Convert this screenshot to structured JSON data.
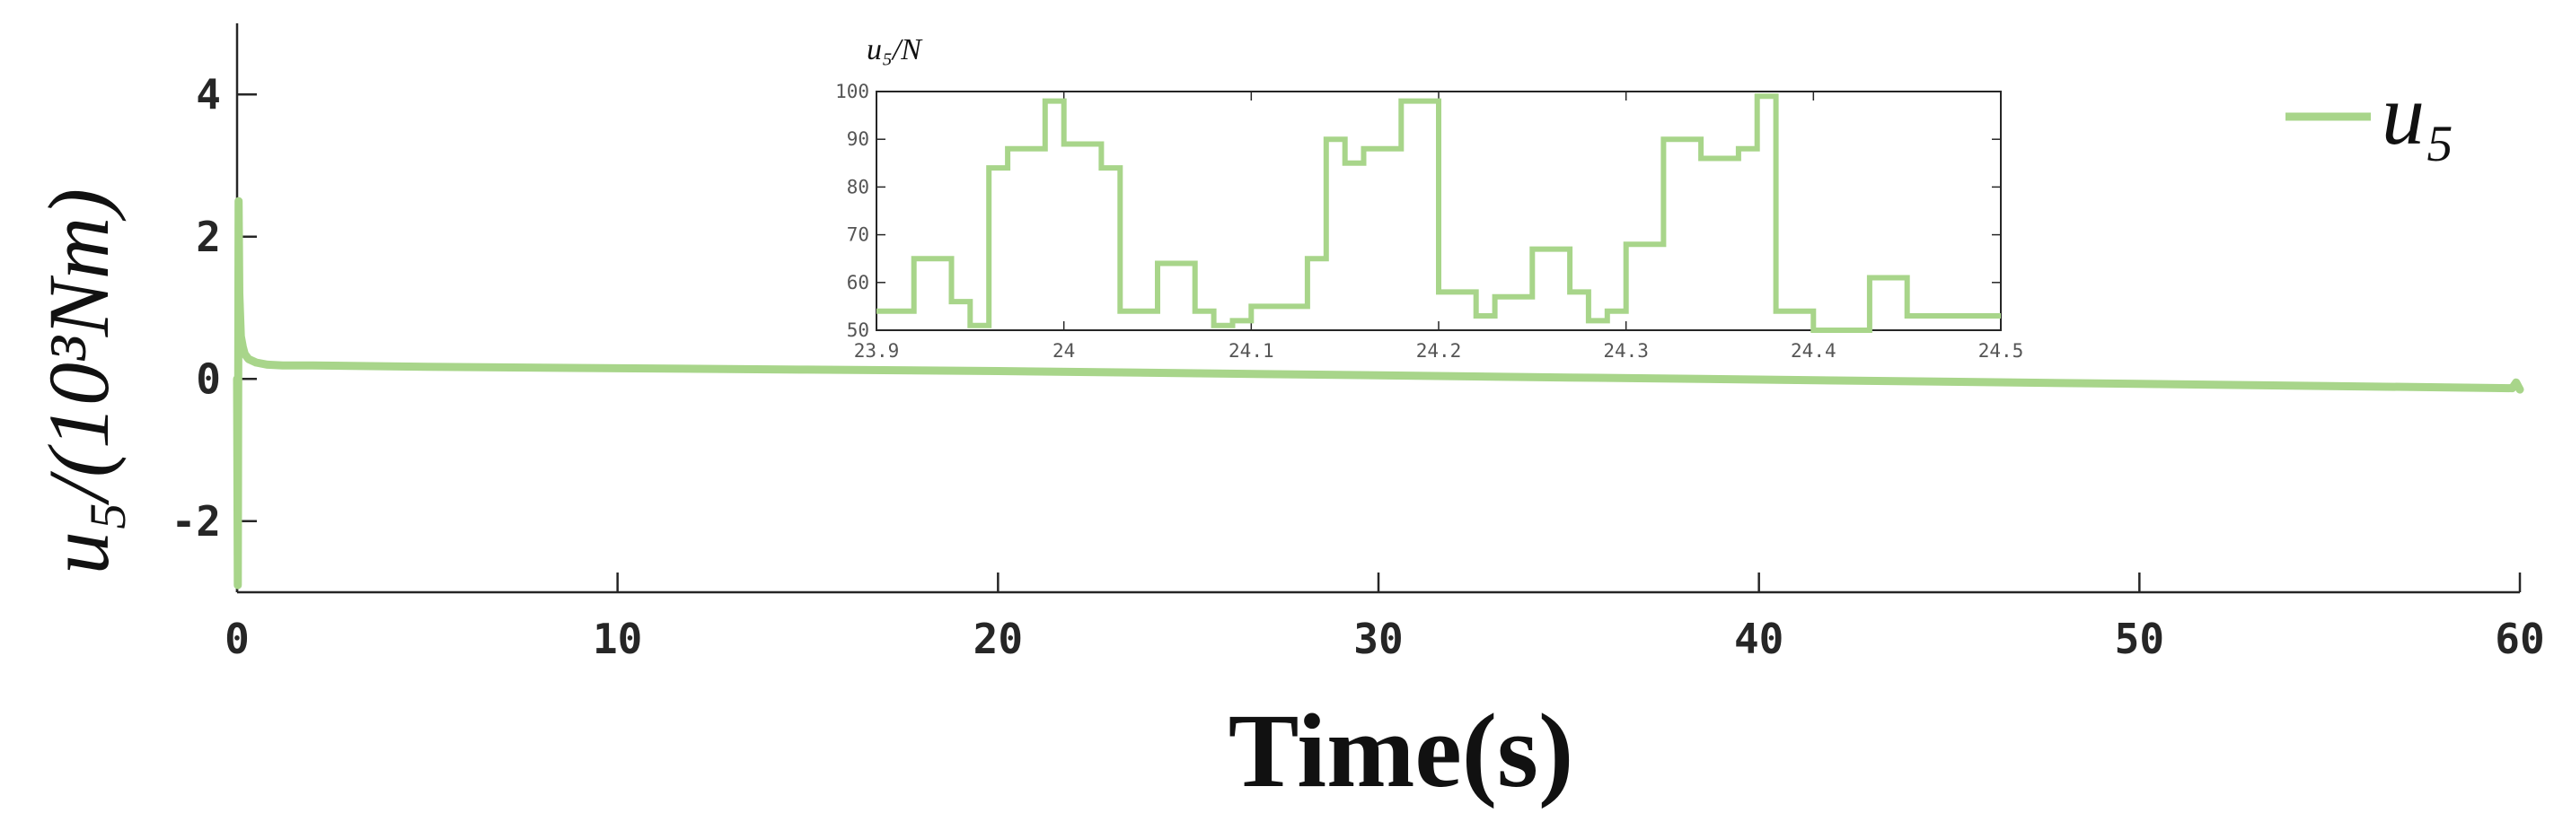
{
  "chart_data": [
    {
      "type": "line",
      "xlabel": "Time(s)",
      "ylabel": "u₅/(10³Nm)",
      "xlim": [
        0,
        60
      ],
      "ylim": [
        -3,
        5
      ],
      "x_ticks": [
        "0",
        "10",
        "20",
        "30",
        "40",
        "50",
        "60"
      ],
      "y_ticks": [
        "-2",
        "0",
        "2",
        "4"
      ],
      "grid": false,
      "legend": {
        "position": "top-right",
        "entries": [
          "u₅"
        ]
      },
      "series": [
        {
          "name": "u₅",
          "color": "#a8d58a",
          "x": [
            0,
            0.02,
            0.04,
            0.06,
            0.1,
            0.15,
            0.2,
            0.3,
            0.5,
            0.8,
            1.2,
            2,
            5,
            10,
            15,
            20,
            25,
            30,
            35,
            40,
            45,
            50,
            55,
            59.8,
            59.9,
            60
          ],
          "y": [
            0,
            -2.9,
            2.5,
            1.2,
            0.6,
            0.45,
            0.35,
            0.28,
            0.23,
            0.2,
            0.19,
            0.19,
            0.17,
            0.15,
            0.13,
            0.11,
            0.08,
            0.05,
            0.02,
            -0.01,
            -0.04,
            -0.07,
            -0.1,
            -0.13,
            -0.05,
            -0.15
          ]
        }
      ]
    },
    {
      "type": "line",
      "ylabel": "u₅/N",
      "xlim": [
        23.9,
        24.5
      ],
      "ylim": [
        50,
        100
      ],
      "x_ticks": [
        "23.9",
        "24",
        "24.1",
        "24.2",
        "24.3",
        "24.4",
        "24.5"
      ],
      "y_ticks": [
        "50",
        "60",
        "70",
        "80",
        "90",
        "100"
      ],
      "series": [
        {
          "name": "u₅",
          "color": "#a8d58a",
          "step_x": [
            23.9,
            23.92,
            23.94,
            23.95,
            23.96,
            23.97,
            23.98,
            23.99,
            24.0,
            24.02,
            24.03,
            24.05,
            24.07,
            24.08,
            24.09,
            24.1,
            24.11,
            24.13,
            24.14,
            24.15,
            24.16,
            24.18,
            24.2,
            24.22,
            24.23,
            24.25,
            24.27,
            24.28,
            24.29,
            24.3,
            24.32,
            24.34,
            24.36,
            24.37,
            24.38,
            24.4,
            24.42,
            24.43,
            24.45,
            24.47,
            24.5
          ],
          "step_y": [
            54,
            65,
            56,
            51,
            84,
            88,
            88,
            98,
            89,
            84,
            54,
            64,
            54,
            51,
            52,
            55,
            55,
            65,
            90,
            85,
            88,
            98,
            58,
            53,
            57,
            67,
            58,
            52,
            54,
            68,
            90,
            86,
            88,
            99,
            54,
            49,
            50,
            61,
            53,
            53,
            53
          ]
        }
      ]
    }
  ]
}
